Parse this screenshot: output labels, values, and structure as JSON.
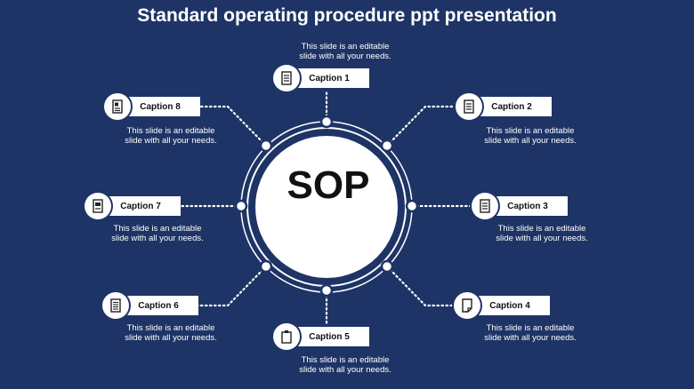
{
  "title": "Standard operating procedure ppt presentation",
  "center_label": "SOP",
  "colors": {
    "background": "#1e3466",
    "accent": "#ffffff"
  },
  "captions": [
    {
      "label": "Caption 1",
      "desc_line1": "This slide is an editable",
      "desc_line2": "slide with all your needs.",
      "icon": "document-lines-icon"
    },
    {
      "label": "Caption 2",
      "desc_line1": "This slide is an editable",
      "desc_line2": "slide with all your needs.",
      "icon": "document-lines-icon"
    },
    {
      "label": "Caption 3",
      "desc_line1": "This slide is an editable",
      "desc_line2": "slide with all your needs.",
      "icon": "document-lines-icon"
    },
    {
      "label": "Caption 4",
      "desc_line1": "This slide is an editable",
      "desc_line2": "slide with all your needs.",
      "icon": "page-fold-icon"
    },
    {
      "label": "Caption 5",
      "desc_line1": "This slide is an editable",
      "desc_line2": "slide with all your needs.",
      "icon": "clipboard-icon"
    },
    {
      "label": "Caption 6",
      "desc_line1": "This slide is an editable",
      "desc_line2": "slide with all your needs.",
      "icon": "document-lines-icon"
    },
    {
      "label": "Caption 7",
      "desc_line1": "This slide is an editable",
      "desc_line2": "slide with all your needs.",
      "icon": "document-chart-icon"
    },
    {
      "label": "Caption 8",
      "desc_line1": "This slide is an editable",
      "desc_line2": "slide with all your needs.",
      "icon": "document-image-icon"
    }
  ]
}
